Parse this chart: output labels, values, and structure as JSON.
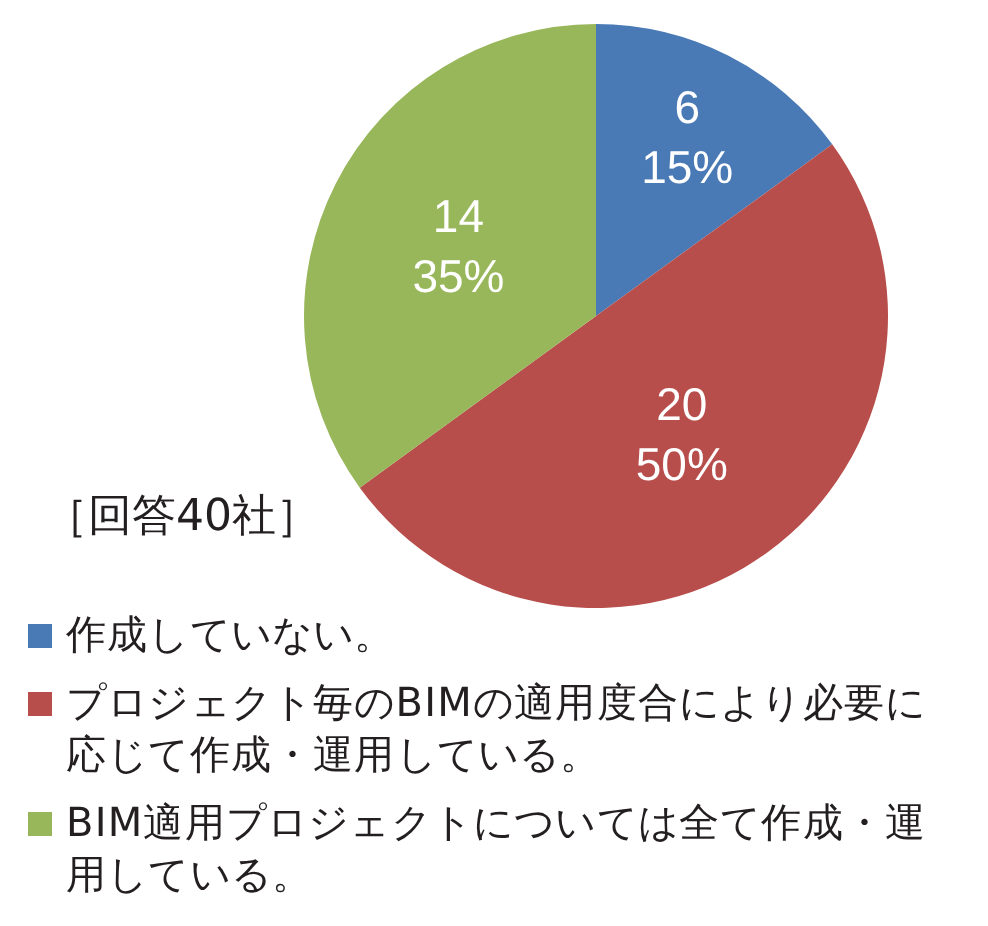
{
  "chart_data": {
    "type": "pie",
    "categories": [
      "作成していない。",
      "プロジェクト毎のBIMの適用度合により必要に応じて作成・運用している。",
      "BIM適用プロジェクトについては全て作成・運用している。"
    ],
    "values": [
      6,
      20,
      14
    ],
    "colors": [
      "#4a7ab5",
      "#b84e4b",
      "#98b75a"
    ],
    "value_labels": [
      "6\n15%",
      "20\n50%",
      "14\n35%"
    ],
    "annotations": [
      "［回答40社］"
    ],
    "legend": "bottom"
  }
}
